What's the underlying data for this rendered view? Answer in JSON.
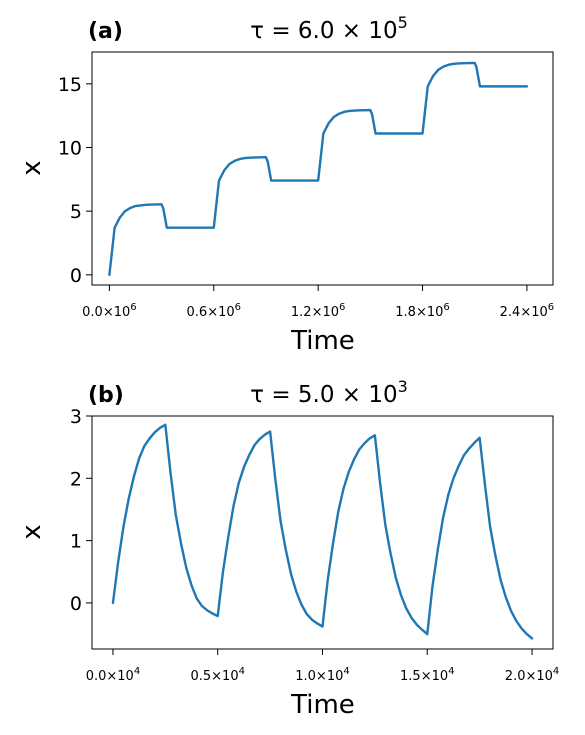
{
  "chart_data": [
    {
      "type": "line",
      "panel_label": "(a)",
      "title": {
        "prefix": "τ = 6.0 × 10",
        "exp": "5"
      },
      "xlabel": "Time",
      "ylabel": "x",
      "xlim": [
        -100000,
        2550000
      ],
      "ylim": [
        -0.8,
        17.5
      ],
      "xticks": [
        {
          "value": 0,
          "mantissa": "0.0",
          "exp": "6"
        },
        {
          "value": 600000,
          "mantissa": "0.6",
          "exp": "6"
        },
        {
          "value": 1200000,
          "mantissa": "1.2",
          "exp": "6"
        },
        {
          "value": 1800000,
          "mantissa": "1.8",
          "exp": "6"
        },
        {
          "value": 2400000,
          "mantissa": "2.4",
          "exp": "6"
        }
      ],
      "yticks": [
        {
          "value": 0,
          "label": "0"
        },
        {
          "value": 5,
          "label": "5"
        },
        {
          "value": 10,
          "label": "10"
        },
        {
          "value": 15,
          "label": "15"
        }
      ],
      "color": "#1f77b4",
      "series": [
        {
          "x": [
            0,
            30000,
            60000,
            90000,
            120000,
            150000,
            180000,
            210000,
            240000,
            270000,
            300000,
            310000,
            330000,
            360000,
            390000,
            420000,
            450000,
            480000,
            510000,
            540000,
            570000,
            600000,
            630000,
            660000,
            690000,
            720000,
            750000,
            780000,
            810000,
            840000,
            870000,
            900000,
            910000,
            930000,
            960000,
            990000,
            1020000,
            1050000,
            1080000,
            1110000,
            1140000,
            1170000,
            1200000,
            1230000,
            1260000,
            1290000,
            1320000,
            1350000,
            1380000,
            1410000,
            1440000,
            1470000,
            1500000,
            1510000,
            1530000,
            1560000,
            1590000,
            1620000,
            1650000,
            1680000,
            1710000,
            1740000,
            1770000,
            1800000,
            1830000,
            1860000,
            1890000,
            1920000,
            1950000,
            1980000,
            2010000,
            2040000,
            2070000,
            2100000,
            2110000,
            2130000,
            2160000,
            2190000,
            2220000,
            2250000,
            2280000,
            2310000,
            2340000,
            2370000,
            2400000
          ],
          "y": [
            0.0,
            3.7,
            4.5,
            5.0,
            5.25,
            5.4,
            5.45,
            5.5,
            5.52,
            5.53,
            5.54,
            5.2,
            3.7,
            3.7,
            3.7,
            3.7,
            3.7,
            3.7,
            3.7,
            3.7,
            3.7,
            3.7,
            7.4,
            8.2,
            8.7,
            8.95,
            9.1,
            9.17,
            9.2,
            9.22,
            9.23,
            9.24,
            8.9,
            7.4,
            7.4,
            7.4,
            7.4,
            7.4,
            7.4,
            7.4,
            7.4,
            7.4,
            7.4,
            11.1,
            11.9,
            12.4,
            12.65,
            12.8,
            12.87,
            12.9,
            12.92,
            12.93,
            12.94,
            12.6,
            11.1,
            11.1,
            11.1,
            11.1,
            11.1,
            11.1,
            11.1,
            11.1,
            11.1,
            11.1,
            14.8,
            15.6,
            16.1,
            16.35,
            16.5,
            16.57,
            16.6,
            16.62,
            16.63,
            16.64,
            16.3,
            14.8,
            14.8,
            14.8,
            14.8,
            14.8,
            14.8,
            14.8,
            14.8,
            14.8,
            14.8
          ]
        }
      ]
    },
    {
      "type": "line",
      "panel_label": "(b)",
      "title": {
        "prefix": "τ = 5.0 × 10",
        "exp": "3"
      },
      "xlabel": "Time",
      "ylabel": "x",
      "xlim": [
        -1000,
        21000
      ],
      "ylim": [
        -0.74,
        3.0
      ],
      "xticks": [
        {
          "value": 0,
          "mantissa": "0.0",
          "exp": "4"
        },
        {
          "value": 5000,
          "mantissa": "0.5",
          "exp": "4"
        },
        {
          "value": 10000,
          "mantissa": "1.0",
          "exp": "4"
        },
        {
          "value": 15000,
          "mantissa": "1.5",
          "exp": "4"
        },
        {
          "value": 20000,
          "mantissa": "2.0",
          "exp": "4"
        }
      ],
      "yticks": [
        {
          "value": 0,
          "label": "0"
        },
        {
          "value": 1,
          "label": "1"
        },
        {
          "value": 2,
          "label": "2"
        },
        {
          "value": 3,
          "label": "3"
        }
      ],
      "color": "#1f77b4",
      "series": [
        {
          "x": [
            0,
            250,
            500,
            750,
            1000,
            1250,
            1500,
            1750,
            2000,
            2250,
            2500,
            2750,
            3000,
            3250,
            3500,
            3750,
            4000,
            4250,
            4500,
            4750,
            5000,
            5250,
            5500,
            5750,
            6000,
            6250,
            6500,
            6750,
            7000,
            7250,
            7500,
            7750,
            8000,
            8250,
            8500,
            8750,
            9000,
            9250,
            9500,
            9750,
            10000,
            10250,
            10500,
            10750,
            11000,
            11250,
            11500,
            11750,
            12000,
            12250,
            12500,
            12750,
            13000,
            13250,
            13500,
            13750,
            14000,
            14250,
            14500,
            14750,
            15000,
            15250,
            15500,
            15750,
            16000,
            16250,
            16500,
            16750,
            17000,
            17250,
            17500,
            17750,
            18000,
            18250,
            18500,
            18750,
            19000,
            19250,
            19500,
            19750,
            20000
          ],
          "y": [
            0.0,
            0.66,
            1.22,
            1.67,
            2.03,
            2.32,
            2.52,
            2.64,
            2.74,
            2.81,
            2.86,
            2.08,
            1.41,
            0.95,
            0.56,
            0.28,
            0.07,
            -0.05,
            -0.12,
            -0.17,
            -0.21,
            0.5,
            1.05,
            1.55,
            1.92,
            2.18,
            2.37,
            2.53,
            2.63,
            2.7,
            2.75,
            1.98,
            1.31,
            0.85,
            0.46,
            0.18,
            -0.03,
            -0.18,
            -0.27,
            -0.33,
            -0.38,
            0.37,
            0.95,
            1.46,
            1.83,
            2.1,
            2.3,
            2.46,
            2.56,
            2.64,
            2.69,
            1.92,
            1.25,
            0.79,
            0.4,
            0.12,
            -0.09,
            -0.24,
            -0.35,
            -0.43,
            -0.5,
            0.27,
            0.85,
            1.36,
            1.73,
            2.0,
            2.2,
            2.37,
            2.48,
            2.57,
            2.65,
            1.9,
            1.22,
            0.76,
            0.37,
            0.09,
            -0.13,
            -0.29,
            -0.41,
            -0.5,
            -0.57
          ]
        }
      ]
    }
  ]
}
